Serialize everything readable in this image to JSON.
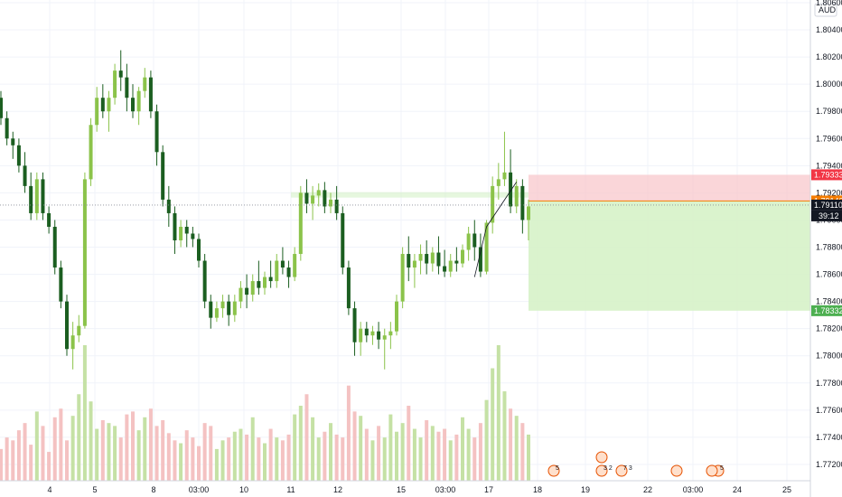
{
  "chart_data": {
    "type": "candlestick",
    "symbol_currency": "AUD",
    "y_range": [
      1.7708,
      1.8062
    ],
    "y_ticks": [
      "1.77200",
      "1.77400",
      "1.77600",
      "1.77800",
      "1.78000",
      "1.78200",
      "1.78400",
      "1.78600",
      "1.78800",
      "1.79000",
      "1.79200",
      "1.79400",
      "1.79600",
      "1.79800",
      "1.80000",
      "1.80200",
      "1.80400",
      "1.80600"
    ],
    "x_ticks": [
      "4",
      "5",
      "8",
      "03:00",
      "10",
      "11",
      "12",
      "15",
      "03:00",
      "17",
      "18",
      "19",
      "22",
      "03:00",
      "24",
      "25"
    ],
    "candles": [
      [
        1.799,
        1.7995,
        1.797,
        1.7975
      ],
      [
        1.7975,
        1.798,
        1.7955,
        1.796
      ],
      [
        1.796,
        1.7965,
        1.7945,
        1.7955
      ],
      [
        1.7955,
        1.796,
        1.7935,
        1.794
      ],
      [
        1.794,
        1.795,
        1.792,
        1.7925
      ],
      [
        1.7925,
        1.7935,
        1.79,
        1.7905
      ],
      [
        1.7905,
        1.7935,
        1.79,
        1.793
      ],
      [
        1.793,
        1.7935,
        1.79,
        1.7905
      ],
      [
        1.7905,
        1.791,
        1.789,
        1.7895
      ],
      [
        1.7895,
        1.79,
        1.786,
        1.7865
      ],
      [
        1.7865,
        1.787,
        1.7835,
        1.784
      ],
      [
        1.784,
        1.7845,
        1.78,
        1.7805
      ],
      [
        1.7805,
        1.7825,
        1.779,
        1.7815
      ],
      [
        1.7815,
        1.783,
        1.781,
        1.7822
      ],
      [
        1.7822,
        1.7935,
        1.782,
        1.793
      ],
      [
        1.793,
        1.7975,
        1.7925,
        1.797
      ],
      [
        1.797,
        1.7998,
        1.7965,
        1.799
      ],
      [
        1.799,
        1.8,
        1.7975,
        1.798
      ],
      [
        1.798,
        1.7995,
        1.7965,
        1.799
      ],
      [
        1.799,
        1.8015,
        1.7985,
        1.801
      ],
      [
        1.801,
        1.8025,
        1.7995,
        1.8005
      ],
      [
        1.8005,
        1.8015,
        1.798,
        1.799
      ],
      [
        1.799,
        1.8,
        1.7975,
        1.798
      ],
      [
        1.798,
        1.7998,
        1.797,
        1.7995
      ],
      [
        1.7995,
        1.8012,
        1.799,
        1.8005
      ],
      [
        1.8005,
        1.801,
        1.7975,
        1.798
      ],
      [
        1.798,
        1.7985,
        1.794,
        1.795
      ],
      [
        1.795,
        1.7955,
        1.791,
        1.7915
      ],
      [
        1.7915,
        1.7925,
        1.7895,
        1.7905
      ],
      [
        1.7905,
        1.791,
        1.7875,
        1.7885
      ],
      [
        1.7885,
        1.79,
        1.788,
        1.7895
      ],
      [
        1.7895,
        1.79,
        1.788,
        1.789
      ],
      [
        1.789,
        1.7895,
        1.788,
        1.7886
      ],
      [
        1.7886,
        1.789,
        1.7865,
        1.787
      ],
      [
        1.787,
        1.7875,
        1.7835,
        1.784
      ],
      [
        1.784,
        1.7845,
        1.782,
        1.7828
      ],
      [
        1.7828,
        1.784,
        1.7825,
        1.7835
      ],
      [
        1.7835,
        1.7845,
        1.7828,
        1.784
      ],
      [
        1.784,
        1.7845,
        1.7822,
        1.783
      ],
      [
        1.783,
        1.7845,
        1.7825,
        1.784
      ],
      [
        1.784,
        1.7855,
        1.7835,
        1.785
      ],
      [
        1.785,
        1.786,
        1.7835,
        1.7845
      ],
      [
        1.7845,
        1.786,
        1.784,
        1.7855
      ],
      [
        1.7855,
        1.787,
        1.7845,
        1.785
      ],
      [
        1.785,
        1.7862,
        1.7845,
        1.7858
      ],
      [
        1.7858,
        1.787,
        1.785,
        1.7855
      ],
      [
        1.7855,
        1.7875,
        1.785,
        1.787
      ],
      [
        1.787,
        1.788,
        1.786,
        1.7865
      ],
      [
        1.7865,
        1.787,
        1.785,
        1.7858
      ],
      [
        1.7858,
        1.788,
        1.7855,
        1.7875
      ],
      [
        1.7875,
        1.7925,
        1.787,
        1.792
      ],
      [
        1.792,
        1.793,
        1.7905,
        1.7912
      ],
      [
        1.7912,
        1.7925,
        1.79,
        1.7918
      ],
      [
        1.7918,
        1.7927,
        1.791,
        1.7922
      ],
      [
        1.7922,
        1.7928,
        1.7905,
        1.791
      ],
      [
        1.791,
        1.792,
        1.7905,
        1.7915
      ],
      [
        1.7915,
        1.7925,
        1.79,
        1.7905
      ],
      [
        1.7905,
        1.791,
        1.786,
        1.7865
      ],
      [
        1.7865,
        1.787,
        1.783,
        1.7835
      ],
      [
        1.7835,
        1.784,
        1.78,
        1.781
      ],
      [
        1.781,
        1.7825,
        1.78,
        1.782
      ],
      [
        1.782,
        1.7825,
        1.781,
        1.7815
      ],
      [
        1.7815,
        1.7822,
        1.7808,
        1.7818
      ],
      [
        1.7818,
        1.7825,
        1.7805,
        1.7812
      ],
      [
        1.7812,
        1.782,
        1.779,
        1.7815
      ],
      [
        1.7815,
        1.7825,
        1.7805,
        1.7818
      ],
      [
        1.7818,
        1.7845,
        1.7815,
        1.784
      ],
      [
        1.784,
        1.788,
        1.7835,
        1.7875
      ],
      [
        1.7875,
        1.7888,
        1.7855,
        1.7865
      ],
      [
        1.7865,
        1.7875,
        1.785,
        1.787
      ],
      [
        1.787,
        1.7882,
        1.786,
        1.7875
      ],
      [
        1.7875,
        1.7885,
        1.786,
        1.7868
      ],
      [
        1.7868,
        1.788,
        1.7862,
        1.7876
      ],
      [
        1.7876,
        1.7888,
        1.786,
        1.7866
      ],
      [
        1.7866,
        1.7878,
        1.7858,
        1.7862
      ],
      [
        1.7862,
        1.7875,
        1.7858,
        1.787
      ],
      [
        1.787,
        1.788,
        1.7862,
        1.7868
      ],
      [
        1.7868,
        1.7882,
        1.7865,
        1.7878
      ],
      [
        1.7878,
        1.7895,
        1.787,
        1.789
      ],
      [
        1.789,
        1.79,
        1.787,
        1.788
      ],
      [
        1.788,
        1.789,
        1.7858,
        1.7862
      ],
      [
        1.7862,
        1.79,
        1.786,
        1.7898
      ],
      [
        1.7898,
        1.7932,
        1.789,
        1.7925
      ],
      [
        1.7925,
        1.7942,
        1.7915,
        1.793
      ],
      [
        1.793,
        1.7965,
        1.7925,
        1.7935
      ],
      [
        1.7935,
        1.7952,
        1.7905,
        1.791
      ],
      [
        1.791,
        1.793,
        1.7905,
        1.7925
      ],
      [
        1.7925,
        1.793,
        1.789,
        1.79
      ],
      [
        1.79,
        1.7915,
        1.7885,
        1.791
      ]
    ],
    "volumes": [
      22,
      30,
      28,
      35,
      40,
      25,
      48,
      38,
      20,
      44,
      50,
      28,
      45,
      60,
      94,
      55,
      36,
      42,
      40,
      38,
      30,
      46,
      48,
      35,
      44,
      50,
      38,
      42,
      33,
      28,
      26,
      35,
      30,
      24,
      40,
      38,
      22,
      28,
      30,
      34,
      36,
      32,
      44,
      30,
      26,
      36,
      30,
      28,
      32,
      46,
      52,
      60,
      44,
      30,
      34,
      40,
      32,
      30,
      66,
      48,
      45,
      36,
      28,
      38,
      30,
      46,
      34,
      40,
      52,
      36,
      30,
      42,
      38,
      34,
      36,
      28,
      32,
      44,
      36,
      30,
      40,
      56,
      78,
      94,
      62,
      50,
      45,
      40,
      32
    ],
    "last_price": "1.79110",
    "last_price_color": "#131722",
    "countdown": "39:12",
    "stop_loss": {
      "value": "1.79333",
      "price": 1.79333,
      "color": "#f23645"
    },
    "entry": {
      "value": "1.79140",
      "price": 1.7914,
      "color": "#f57c00"
    },
    "take_profit": {
      "value": "1.78332",
      "price": 1.78332,
      "color": "#4caf50"
    },
    "colors": {
      "up": "#8bc34a",
      "down": "#1b5e20",
      "vol_up": "#c5e1a5",
      "vol_down": "#f4c2c2"
    },
    "events": [
      "5",
      "3 2",
      "7 3",
      "5"
    ]
  }
}
